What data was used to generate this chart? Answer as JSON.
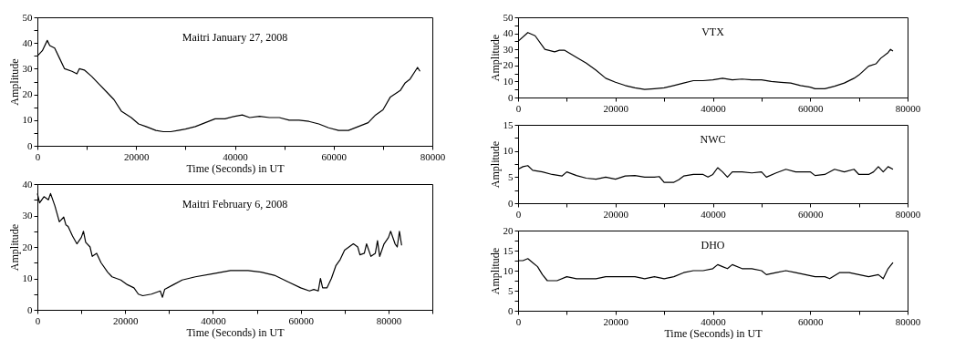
{
  "chart_data": [
    {
      "type": "line",
      "title": "Maitri January 27, 2008",
      "xlabel": "Time (Seconds) in UT",
      "ylabel": "Amplitude",
      "xlim": [
        0,
        80000
      ],
      "ylim": [
        0,
        50
      ],
      "xticks": [
        0,
        {
          "value": 10000,
          "label": null
        },
        20000,
        {
          "value": 30000,
          "label": null
        },
        40000,
        {
          "value": 50000,
          "label": null
        },
        60000,
        {
          "value": 70000,
          "label": null
        },
        80000
      ],
      "yticks": [
        0,
        {
          "value": 5,
          "label": null
        },
        10,
        {
          "value": 15,
          "label": null
        },
        20,
        {
          "value": 25,
          "label": null
        },
        30,
        {
          "value": 35,
          "label": null
        },
        40,
        {
          "value": 45,
          "label": null
        },
        50
      ],
      "x": [
        0,
        1000,
        2000,
        2500,
        3500,
        4500,
        5500,
        7000,
        8000,
        8500,
        9500,
        11000,
        12500,
        14000,
        15500,
        17000,
        19000,
        20500,
        22000,
        24000,
        25500,
        27000,
        28500,
        30000,
        32000,
        34000,
        36000,
        38000,
        40000,
        41500,
        43000,
        45000,
        47000,
        49000,
        51000,
        53000,
        55000,
        57000,
        59000,
        61000,
        63000,
        65000,
        67000,
        68500,
        70000,
        71500,
        73500,
        74500,
        75500,
        76500,
        77000,
        77500
      ],
      "series": [
        {
          "color": "#000000",
          "values": [
            35,
            37,
            41,
            39,
            38,
            34,
            30,
            29,
            28,
            30,
            29.5,
            27,
            24,
            21,
            18,
            13.5,
            11,
            8.5,
            7.5,
            6,
            5.5,
            5.5,
            6,
            6.5,
            7.5,
            9,
            10.5,
            10.5,
            11.5,
            12,
            11,
            11.5,
            11,
            11,
            10,
            10,
            9.5,
            8.5,
            7,
            6,
            6,
            7.5,
            9,
            12,
            14,
            19,
            21.5,
            24.5,
            26,
            29,
            30.5,
            29
          ]
        }
      ]
    },
    {
      "type": "line",
      "title": "Maitri February 6, 2008",
      "xlabel": "Time (Seconds) in UT",
      "ylabel": "Amplitude",
      "xlim": [
        0,
        90000
      ],
      "ylim": [
        0,
        40
      ],
      "xticks": [
        0,
        {
          "value": 10000,
          "label": null
        },
        20000,
        {
          "value": 30000,
          "label": null
        },
        40000,
        {
          "value": 50000,
          "label": null
        },
        60000,
        {
          "value": 70000,
          "label": null
        },
        80000,
        {
          "value": 90000,
          "label": null
        }
      ],
      "yticks": [
        0,
        {
          "value": 5,
          "label": null
        },
        10,
        {
          "value": 15,
          "label": null
        },
        20,
        {
          "value": 25,
          "label": null
        },
        30,
        {
          "value": 35,
          "label": null
        },
        40
      ],
      "x": [
        0,
        500,
        1500,
        2500,
        3000,
        4000,
        5000,
        6000,
        6500,
        7000,
        8000,
        9000,
        10000,
        10500,
        11000,
        12000,
        12500,
        13500,
        14500,
        16000,
        17000,
        19000,
        20500,
        22000,
        23000,
        24000,
        26000,
        28000,
        28500,
        29000,
        31000,
        33000,
        36000,
        40000,
        44000,
        48000,
        51000,
        54000,
        57000,
        60000,
        62000,
        63000,
        64000,
        64500,
        65000,
        66000,
        67000,
        68000,
        69000,
        70000,
        71000,
        72000,
        73000,
        73500,
        74500,
        75000,
        76000,
        77000,
        77500,
        78000,
        79000,
        80000,
        80500,
        81500,
        82000,
        82500,
        83000
      ],
      "series": [
        {
          "color": "#000000",
          "values": [
            37,
            34,
            36,
            35,
            37,
            33,
            28,
            29.5,
            27,
            26.5,
            23.5,
            21,
            23,
            25,
            21.5,
            20,
            17,
            18,
            15,
            12,
            10.5,
            9.5,
            8,
            7,
            5,
            4.5,
            5,
            6,
            4,
            6.5,
            8,
            9.5,
            10.5,
            11.5,
            12.5,
            12.5,
            12,
            11,
            9,
            7,
            6,
            6.5,
            6,
            10,
            7,
            7,
            10,
            14,
            16,
            19,
            20,
            21,
            20,
            17.5,
            18,
            21,
            17,
            18,
            22,
            17,
            21,
            23,
            25,
            21,
            20,
            25,
            20.5
          ]
        }
      ]
    },
    {
      "type": "line",
      "title": "VTX",
      "ylabel": "Amplitude",
      "xlim": [
        0,
        80000
      ],
      "ylim": [
        0,
        50
      ],
      "xticks": [
        0,
        {
          "value": 10000,
          "label": null
        },
        20000,
        {
          "value": 30000,
          "label": null
        },
        40000,
        {
          "value": 50000,
          "label": null
        },
        60000,
        {
          "value": 70000,
          "label": null
        },
        80000
      ],
      "yticks": [
        0,
        {
          "value": 5,
          "label": null
        },
        10,
        {
          "value": 15,
          "label": null
        },
        20,
        {
          "value": 25,
          "label": null
        },
        30,
        {
          "value": 35,
          "label": null
        },
        40,
        {
          "value": 45,
          "label": null
        },
        50
      ],
      "x": [
        0,
        2000,
        3500,
        5500,
        7500,
        8500,
        9500,
        12000,
        14000,
        16000,
        18000,
        20000,
        22000,
        24000,
        26000,
        28000,
        30000,
        32000,
        34000,
        36000,
        38000,
        40000,
        42000,
        44000,
        46000,
        48000,
        50000,
        52000,
        54000,
        56000,
        58000,
        60000,
        61000,
        63000,
        65000,
        67000,
        69000,
        70000,
        72000,
        73500,
        74500,
        76000,
        76500,
        77000
      ],
      "series": [
        {
          "color": "#000000",
          "values": [
            35,
            40.5,
            38.5,
            30,
            28.5,
            29.5,
            29.5,
            25,
            21.5,
            17,
            12,
            9.5,
            7.5,
            6,
            5,
            5.5,
            6,
            7.5,
            9,
            10.5,
            10.5,
            11,
            12,
            11,
            11.5,
            11,
            11,
            10,
            9.5,
            9,
            7.5,
            6.5,
            5.5,
            5.5,
            7,
            9,
            12,
            14,
            19.5,
            21,
            24.5,
            28,
            30,
            29
          ]
        }
      ]
    },
    {
      "type": "line",
      "title": "NWC",
      "ylabel": "Amplitude",
      "xlim": [
        0,
        80000
      ],
      "ylim": [
        0,
        15
      ],
      "xticks": [
        0,
        {
          "value": 10000,
          "label": null
        },
        20000,
        {
          "value": 30000,
          "label": null
        },
        40000,
        {
          "value": 50000,
          "label": null
        },
        60000,
        {
          "value": 70000,
          "label": null
        },
        80000
      ],
      "yticks": [
        0,
        {
          "value": 2.5,
          "label": null
        },
        5,
        {
          "value": 7.5,
          "label": null
        },
        10,
        {
          "value": 12.5,
          "label": null
        },
        15
      ],
      "x": [
        0,
        1000,
        2000,
        3000,
        5000,
        7000,
        9000,
        10000,
        12000,
        14000,
        16000,
        18000,
        20000,
        22000,
        24000,
        26000,
        28000,
        29000,
        30000,
        32000,
        33000,
        34000,
        36000,
        38000,
        39000,
        40000,
        41000,
        42000,
        43000,
        44000,
        46000,
        48000,
        50000,
        51000,
        53000,
        55000,
        57000,
        59000,
        60000,
        61000,
        63000,
        65000,
        67000,
        69000,
        70000,
        72000,
        73000,
        74000,
        75000,
        76000,
        77000
      ],
      "series": [
        {
          "color": "#000000",
          "values": [
            6.5,
            7,
            7.2,
            6.3,
            6,
            5.5,
            5.2,
            6,
            5.3,
            4.8,
            4.6,
            5,
            4.6,
            5.2,
            5.3,
            5,
            5,
            5.1,
            4,
            4,
            4.5,
            5.2,
            5.5,
            5.5,
            5,
            5.5,
            6.8,
            6,
            5,
            6,
            6,
            5.8,
            6,
            5,
            5.8,
            6.5,
            6,
            6,
            6,
            5.3,
            5.5,
            6.5,
            6,
            6.5,
            5.5,
            5.5,
            6,
            7,
            6,
            7,
            6.5
          ]
        }
      ]
    },
    {
      "type": "line",
      "title": "DHO",
      "xlabel": "Time (Seconds) in UT",
      "ylabel": "Amplitude",
      "xlim": [
        0,
        80000
      ],
      "ylim": [
        0,
        20
      ],
      "xticks": [
        0,
        {
          "value": 10000,
          "label": null
        },
        20000,
        {
          "value": 30000,
          "label": null
        },
        40000,
        {
          "value": 50000,
          "label": null
        },
        60000,
        {
          "value": 70000,
          "label": null
        },
        80000
      ],
      "yticks": [
        0,
        {
          "value": 2.5,
          "label": null
        },
        5,
        {
          "value": 7.5,
          "label": null
        },
        10,
        {
          "value": 12.5,
          "label": null
        },
        15,
        {
          "value": 17.5,
          "label": null
        },
        20
      ],
      "x": [
        0,
        1000,
        2000,
        3000,
        4000,
        5000,
        6000,
        8000,
        10000,
        12000,
        14000,
        16000,
        18000,
        20000,
        22000,
        24000,
        26000,
        28000,
        30000,
        32000,
        34000,
        36000,
        38000,
        40000,
        41000,
        42000,
        43000,
        44000,
        46000,
        48000,
        50000,
        51000,
        53000,
        55000,
        57000,
        59000,
        61000,
        63000,
        64000,
        66000,
        68000,
        70000,
        72000,
        74000,
        75000,
        76000,
        77000
      ],
      "series": [
        {
          "color": "#000000",
          "values": [
            12.5,
            12.5,
            13,
            12,
            11,
            9,
            7.5,
            7.5,
            8.5,
            8,
            8,
            8,
            8.5,
            8.5,
            8.5,
            8.5,
            8,
            8.5,
            8,
            8.5,
            9.5,
            10,
            10,
            10.5,
            11.5,
            11,
            10.5,
            11.5,
            10.5,
            10.5,
            10,
            9,
            9.5,
            10,
            9.5,
            9,
            8.5,
            8.5,
            8,
            9.5,
            9.5,
            9,
            8.5,
            9,
            8,
            10.5,
            12
          ]
        }
      ]
    }
  ]
}
